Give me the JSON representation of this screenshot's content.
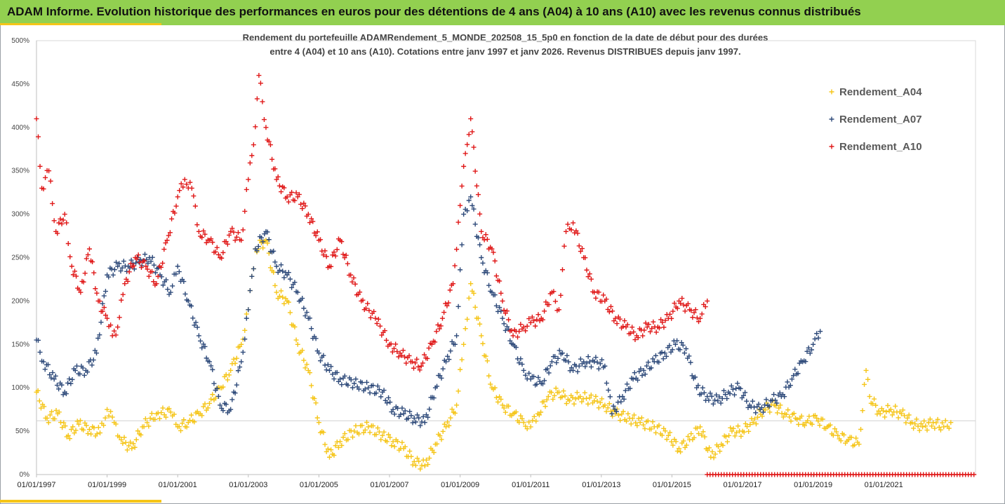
{
  "header": {
    "title": "ADAM Informe. Evolution historique des performances en euros pour des détentions de 4 ans (A04) à 10 ans (A10) avec les revenus connus distribués"
  },
  "colors": {
    "header_bg": "#92d050",
    "accent": "#f5c518",
    "A04": "#f5c518",
    "A07": "#2e4a7a",
    "A10": "#e01818"
  },
  "chart_data": {
    "type": "scatter",
    "title_line1": "Rendement du portefeuille ADAMRendement_5_MONDE_202508_15_5p0 en fonction de la date de début pour des durées",
    "title_line2": "entre 4 (A04) et 10 ans (A10). Cotations entre janv 1997 et janv 2026. Revenus DISTRIBUES depuis janv 1997.",
    "xlabel": "",
    "ylabel": "",
    "xlim": [
      1997.0,
      2023.6
    ],
    "ylim": [
      0,
      500
    ],
    "y_ticks": [
      "0%",
      "50%",
      "100%",
      "150%",
      "200%",
      "250%",
      "300%",
      "350%",
      "400%",
      "450%",
      "500%"
    ],
    "x_ticks": [
      {
        "year": 1997,
        "label": "01/01/1997"
      },
      {
        "year": 1999,
        "label": "01/01/1999"
      },
      {
        "year": 2001,
        "label": "01/01/2001"
      },
      {
        "year": 2003,
        "label": "01/01/2003"
      },
      {
        "year": 2005,
        "label": "01/01/2005"
      },
      {
        "year": 2007,
        "label": "01/01/2007"
      },
      {
        "year": 2009,
        "label": "01/01/2009"
      },
      {
        "year": 2011,
        "label": "01/01/2011"
      },
      {
        "year": 2013,
        "label": "01/01/2013"
      },
      {
        "year": 2015,
        "label": "01/01/2015"
      },
      {
        "year": 2017,
        "label": "01/01/2017"
      },
      {
        "year": 2019,
        "label": "01/01/2019"
      },
      {
        "year": 2021,
        "label": "01/01/2021"
      }
    ],
    "marker": "+",
    "legend": {
      "position": "top-right"
    },
    "series": [
      {
        "name": "Rendement_A04",
        "color": "#f5c518",
        "x": [
          1997.0,
          1997.3,
          1997.6,
          1997.9,
          1998.2,
          1998.5,
          1998.8,
          1999.0,
          1999.2,
          1999.4,
          1999.7,
          2000.0,
          2000.4,
          2000.8,
          2001.0,
          2001.3,
          2001.6,
          2001.9,
          2002.2,
          2002.5,
          2002.8,
          2003.0,
          2003.2,
          2003.5,
          2003.8,
          2004.1,
          2004.4,
          2004.7,
          2005.0,
          2005.3,
          2005.6,
          2006.0,
          2006.4,
          2006.8,
          2007.1,
          2007.4,
          2007.7,
          2008.0,
          2008.3,
          2008.6,
          2008.9,
          2009.1,
          2009.3,
          2009.6,
          2009.9,
          2010.2,
          2010.5,
          2010.8,
          2011.0,
          2011.2,
          2011.5,
          2011.8,
          2012.1,
          2012.4,
          2012.8,
          2013.1,
          2013.4,
          2013.8,
          2014.1,
          2014.5,
          2014.9,
          2015.2,
          2015.5,
          2015.8,
          2016.1,
          2016.4,
          2016.7,
          2017.0,
          2017.3,
          2017.6,
          2017.9,
          2018.2,
          2018.5,
          2018.8,
          2019.1,
          2019.4,
          2019.7,
          2020.0,
          2020.3,
          2020.5,
          2020.6,
          2020.9,
          2021.2,
          2021.5,
          2021.8,
          2022.1,
          2022.4,
          2022.7,
          2022.9
        ],
        "y": [
          95,
          65,
          70,
          45,
          58,
          52,
          48,
          75,
          60,
          40,
          30,
          55,
          70,
          72,
          55,
          60,
          70,
          82,
          100,
          120,
          150,
          190,
          260,
          270,
          210,
          200,
          150,
          120,
          60,
          20,
          38,
          50,
          55,
          45,
          38,
          30,
          15,
          10,
          35,
          55,
          80,
          150,
          220,
          160,
          100,
          80,
          70,
          60,
          55,
          70,
          90,
          95,
          85,
          90,
          85,
          80,
          70,
          65,
          60,
          55,
          45,
          30,
          40,
          55,
          20,
          35,
          50,
          50,
          60,
          75,
          80,
          70,
          65,
          60,
          65,
          55,
          45,
          40,
          35,
          120,
          90,
          70,
          75,
          70,
          60,
          55,
          60,
          55,
          60
        ]
      },
      {
        "name": "Rendement_A07",
        "color": "#2e4a7a",
        "x": [
          1997.0,
          1997.2,
          1997.5,
          1997.8,
          1998.1,
          1998.4,
          1998.7,
          1999.0,
          1999.3,
          1999.6,
          1999.9,
          2000.2,
          2000.5,
          2000.8,
          2001.0,
          2001.3,
          2001.6,
          2001.9,
          2002.2,
          2002.5,
          2002.8,
          2003.0,
          2003.2,
          2003.5,
          2003.8,
          2004.1,
          2004.4,
          2004.7,
          2005.0,
          2005.3,
          2005.6,
          2006.0,
          2006.4,
          2006.8,
          2007.1,
          2007.4,
          2007.7,
          2008.0,
          2008.3,
          2008.6,
          2008.9,
          2009.1,
          2009.3,
          2009.6,
          2009.9,
          2010.2,
          2010.5,
          2010.8,
          2011.0,
          2011.3,
          2011.6,
          2011.9,
          2012.2,
          2012.5,
          2012.8,
          2013.1,
          2013.3,
          2013.6,
          2013.9,
          2014.2,
          2014.5,
          2014.8,
          2015.1,
          2015.4,
          2015.7,
          2016.0,
          2016.3,
          2016.6,
          2016.9,
          2017.2,
          2017.5,
          2017.8,
          2018.1,
          2018.4,
          2018.7,
          2019.0,
          2019.2
        ],
        "y": [
          155,
          130,
          110,
          95,
          120,
          120,
          140,
          230,
          240,
          240,
          245,
          250,
          230,
          210,
          240,
          200,
          160,
          130,
          80,
          75,
          130,
          190,
          260,
          280,
          240,
          230,
          210,
          180,
          140,
          120,
          110,
          105,
          100,
          95,
          75,
          70,
          65,
          60,
          100,
          130,
          160,
          300,
          320,
          250,
          210,
          180,
          150,
          120,
          110,
          105,
          130,
          140,
          120,
          130,
          130,
          125,
          70,
          90,
          110,
          120,
          130,
          140,
          150,
          145,
          100,
          90,
          85,
          95,
          100,
          80,
          75,
          85,
          90,
          110,
          130,
          150,
          165
        ]
      },
      {
        "name": "Rendement_A10",
        "color": "#e01818",
        "x": [
          1997.0,
          1997.15,
          1997.35,
          1997.55,
          1997.8,
          1998.0,
          1998.25,
          1998.5,
          1998.75,
          1999.0,
          1999.15,
          1999.3,
          1999.5,
          1999.8,
          2000.1,
          2000.4,
          2000.7,
          2001.0,
          2001.2,
          2001.4,
          2001.6,
          2001.9,
          2002.2,
          2002.5,
          2002.8,
          2003.0,
          2003.15,
          2003.3,
          2003.5,
          2003.8,
          2004.1,
          2004.4,
          2004.7,
          2005.0,
          2005.3,
          2005.6,
          2005.9,
          2006.2,
          2006.6,
          2007.0,
          2007.3,
          2007.6,
          2007.9,
          2008.2,
          2008.5,
          2008.8,
          2009.0,
          2009.15,
          2009.3,
          2009.6,
          2009.9,
          2010.2,
          2010.5,
          2010.8,
          2011.0,
          2011.3,
          2011.6,
          2011.8,
          2012.0,
          2012.2,
          2012.5,
          2012.8,
          2013.1,
          2013.4,
          2013.7,
          2014.0,
          2014.3,
          2014.6,
          2014.9,
          2015.2,
          2015.5,
          2015.8,
          2016.0
        ],
        "y": [
          410,
          330,
          350,
          280,
          300,
          240,
          210,
          260,
          200,
          180,
          160,
          170,
          220,
          250,
          240,
          220,
          270,
          320,
          340,
          330,
          280,
          270,
          250,
          280,
          270,
          340,
          380,
          460,
          400,
          340,
          320,
          320,
          300,
          270,
          240,
          270,
          230,
          200,
          180,
          150,
          140,
          130,
          125,
          150,
          180,
          220,
          310,
          370,
          410,
          280,
          260,
          200,
          160,
          170,
          175,
          180,
          210,
          190,
          280,
          290,
          250,
          210,
          200,
          180,
          170,
          160,
          170,
          170,
          180,
          200,
          190,
          180,
          200
        ]
      },
      {
        "name": "baseline-zero-markers",
        "color": "#e01818",
        "x": [
          2016.0,
          2023.6
        ],
        "y": [
          0,
          0
        ]
      }
    ]
  }
}
